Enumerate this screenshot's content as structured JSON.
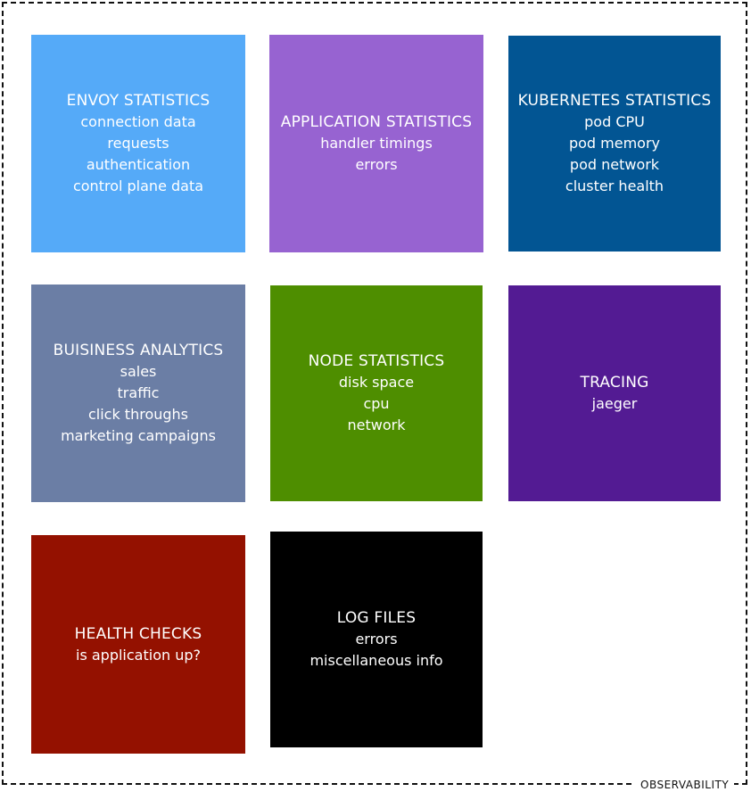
{
  "diagram": {
    "frame_label": "OBSERVABILITY",
    "cards": [
      {
        "title": "ENVOY STATISTICS",
        "items": [
          "connection data",
          "requests",
          "authentication",
          "control plane data"
        ],
        "color": "#55aaf8"
      },
      {
        "title": "APPLICATION STATISTICS",
        "items": [
          "handler timings",
          "errors"
        ],
        "color": "#9763d1"
      },
      {
        "title": "KUBERNETES STATISTICS",
        "items": [
          "pod CPU",
          "pod memory",
          "pod network",
          "cluster health"
        ],
        "color": "#025593"
      },
      {
        "title": "BUISINESS ANALYTICS",
        "items": [
          "sales",
          "traffic",
          "click throughs",
          "marketing campaigns"
        ],
        "color": "#6b7ea5"
      },
      {
        "title": "NODE STATISTICS",
        "items": [
          "disk space",
          "cpu",
          "network"
        ],
        "color": "#4e8e00"
      },
      {
        "title": "TRACING",
        "items": [
          "jaeger"
        ],
        "color": "#531b93"
      },
      {
        "title": "HEALTH CHECKS",
        "items": [
          "is application up?"
        ],
        "color": "#941100"
      },
      {
        "title": "LOG FILES",
        "items": [
          "errors",
          "miscellaneous info"
        ],
        "color": "#000000"
      }
    ]
  }
}
